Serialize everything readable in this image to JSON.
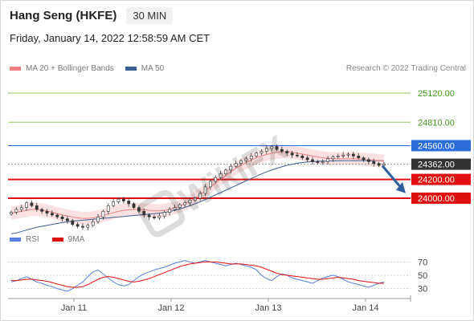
{
  "header": {
    "title": "Hang Seng (HKFE)",
    "timeframe": "30 MIN",
    "datetime": "Friday, January 14, 2022 12:58:59 AM CET"
  },
  "legend": {
    "ma20_label": "MA 20 + Bollinger Bands",
    "ma50_label": "MA 50",
    "copyright": "Research © 2022 Trading Central"
  },
  "rsi_legend": {
    "rsi_label": "RSI",
    "ma_label": "9MA"
  },
  "watermark": {
    "text": "WikiFX"
  },
  "colors": {
    "ma20_band": "#f4a6a6",
    "ma20_band_fill": "#fbdede",
    "ma50": "#3a5f95",
    "resistance_green": "#8fcf5a",
    "pivot_blue": "#2a6dd9",
    "support_red": "#e01010",
    "current_price_bg": "#333333",
    "rsi_line": "#5a7fe0",
    "rsi_ma": "#e01010",
    "arrow": "#2f5f9e",
    "green_label": "#3c9a1a"
  },
  "chart_data": {
    "type": "candlestick",
    "y_range": [
      23700,
      25300
    ],
    "levels": [
      {
        "value": 25120,
        "label": "25120.00",
        "kind": "resistance"
      },
      {
        "value": 24810,
        "label": "24810.00",
        "kind": "resistance"
      },
      {
        "value": 24560,
        "label": "24560.00",
        "kind": "pivot"
      },
      {
        "value": 24362,
        "label": "24362.00",
        "kind": "current"
      },
      {
        "value": 24200,
        "label": "24200.00",
        "kind": "support"
      },
      {
        "value": 24000,
        "label": "24000.00",
        "kind": "support"
      }
    ],
    "x_ticks": [
      "Jan 11",
      "Jan 12",
      "Jan 13",
      "Jan 14"
    ],
    "closes": [
      23850,
      23880,
      23900,
      23950,
      23920,
      23880,
      23860,
      23840,
      23820,
      23800,
      23780,
      23760,
      23720,
      23700,
      23690,
      23710,
      23750,
      23800,
      23860,
      23920,
      23960,
      23990,
      23970,
      23940,
      23900,
      23860,
      23820,
      23800,
      23790,
      23810,
      23850,
      23880,
      23900,
      23930,
      23950,
      23980,
      24000,
      24050,
      24120,
      24180,
      24220,
      24260,
      24300,
      24340,
      24370,
      24400,
      24420,
      24450,
      24480,
      24500,
      24530,
      24550,
      24520,
      24500,
      24480,
      24460,
      24450,
      24430,
      24410,
      24390,
      24380,
      24390,
      24420,
      24440,
      24450,
      24460,
      24470,
      24450,
      24430,
      24410,
      24390,
      24370,
      24350,
      24362
    ],
    "ma20": [
      23840,
      23850,
      23860,
      23870,
      23880,
      23880,
      23875,
      23865,
      23850,
      23835,
      23820,
      23810,
      23800,
      23790,
      23785,
      23785,
      23790,
      23800,
      23815,
      23830,
      23845,
      23860,
      23870,
      23875,
      23880,
      23880,
      23875,
      23870,
      23865,
      23865,
      23870,
      23880,
      23895,
      23915,
      23940,
      23970,
      24000,
      24040,
      24080,
      24120,
      24160,
      24200,
      24240,
      24280,
      24320,
      24350,
      24380,
      24405,
      24430,
      24450,
      24465,
      24480,
      24490,
      24495,
      24495,
      24490,
      24480,
      24470,
      24460,
      24450,
      24440,
      24430,
      24425,
      24420,
      24420,
      24420,
      24420,
      24420,
      24418,
      24415,
      24410,
      24405,
      24400,
      24395
    ],
    "ma50": [
      23620,
      23630,
      23645,
      23660,
      23675,
      23690,
      23700,
      23710,
      23720,
      23730,
      23740,
      23748,
      23755,
      23760,
      23765,
      23770,
      23775,
      23780,
      23785,
      23790,
      23795,
      23800,
      23805,
      23810,
      23815,
      23820,
      23825,
      23830,
      23835,
      23840,
      23848,
      23858,
      23870,
      23885,
      23902,
      23920,
      23940,
      23962,
      23985,
      24010,
      24035,
      24060,
      24085,
      24110,
      24135,
      24160,
      24185,
      24210,
      24235,
      24258,
      24280,
      24300,
      24318,
      24335,
      24350,
      24362,
      24372,
      24380,
      24386,
      24390,
      24393,
      24395,
      24396,
      24397,
      24398,
      24399,
      24400,
      24400,
      24400,
      24400,
      24400,
      24400,
      24400,
      24400
    ],
    "rsi": {
      "y_range": [
        20,
        80
      ],
      "ticks": [
        70,
        50,
        30
      ],
      "tick_labels": [
        "70",
        "50",
        "30"
      ],
      "rsi": [
        40,
        42,
        45,
        48,
        44,
        40,
        38,
        35,
        33,
        30,
        28,
        26,
        30,
        35,
        40,
        48,
        55,
        58,
        52,
        46,
        40,
        36,
        34,
        36,
        42,
        48,
        52,
        55,
        58,
        60,
        62,
        65,
        68,
        70,
        72,
        70,
        68,
        70,
        72,
        70,
        68,
        66,
        64,
        66,
        68,
        66,
        64,
        62,
        58,
        50,
        45,
        42,
        48,
        52,
        50,
        46,
        44,
        42,
        40,
        38,
        42,
        46,
        48,
        50,
        48,
        44,
        40,
        38,
        36,
        34,
        32,
        35,
        38,
        40
      ],
      "ma": [
        42,
        42,
        43,
        44,
        44,
        43,
        42,
        41,
        39,
        37,
        35,
        33,
        32,
        32,
        33,
        36,
        40,
        44,
        47,
        48,
        47,
        45,
        43,
        41,
        40,
        41,
        43,
        45,
        48,
        51,
        54,
        57,
        60,
        63,
        65,
        67,
        68,
        69,
        70,
        70,
        70,
        69,
        68,
        67,
        67,
        67,
        66,
        65,
        64,
        62,
        59,
        56,
        53,
        51,
        50,
        49,
        48,
        47,
        46,
        45,
        44,
        44,
        45,
        46,
        47,
        46,
        45,
        44,
        42,
        41,
        40,
        39,
        38,
        38
      ]
    }
  }
}
